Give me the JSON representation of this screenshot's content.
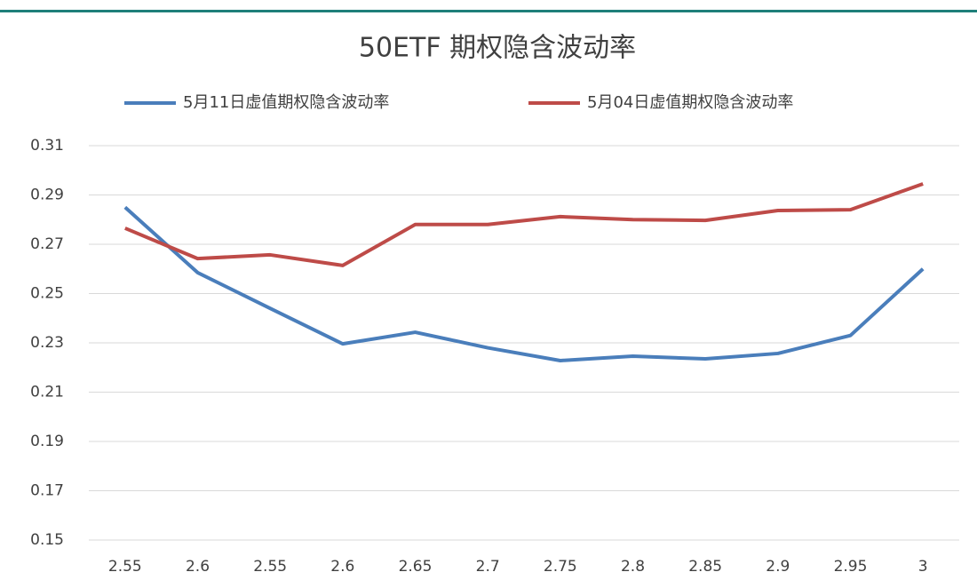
{
  "chart_data": {
    "type": "line",
    "title": "50ETF 期权隐含波动率",
    "categories": [
      "2.55",
      "2.6",
      "2.55",
      "2.6",
      "2.65",
      "2.7",
      "2.75",
      "2.8",
      "2.85",
      "2.9",
      "2.95",
      "3"
    ],
    "series": [
      {
        "name": "5月11日虚值期权隐含波动率",
        "color": "#4a7ebb",
        "values": [
          0.285,
          0.2585,
          0.244,
          0.2296,
          0.2343,
          0.228,
          0.2228,
          0.2246,
          0.2235,
          0.2257,
          0.233,
          0.26
        ]
      },
      {
        "name": "5月04日虚值期权隐含波动率",
        "color": "#be4b48",
        "values": [
          0.2765,
          0.2642,
          0.2657,
          0.2614,
          0.278,
          0.278,
          0.2812,
          0.28,
          0.2797,
          0.2837,
          0.284,
          0.2945
        ]
      }
    ],
    "ylim": [
      0.15,
      0.31
    ],
    "yticks": [
      0.15,
      0.17,
      0.19,
      0.21,
      0.23,
      0.25,
      0.27,
      0.29,
      0.31
    ],
    "grid": true,
    "legend": "top"
  }
}
